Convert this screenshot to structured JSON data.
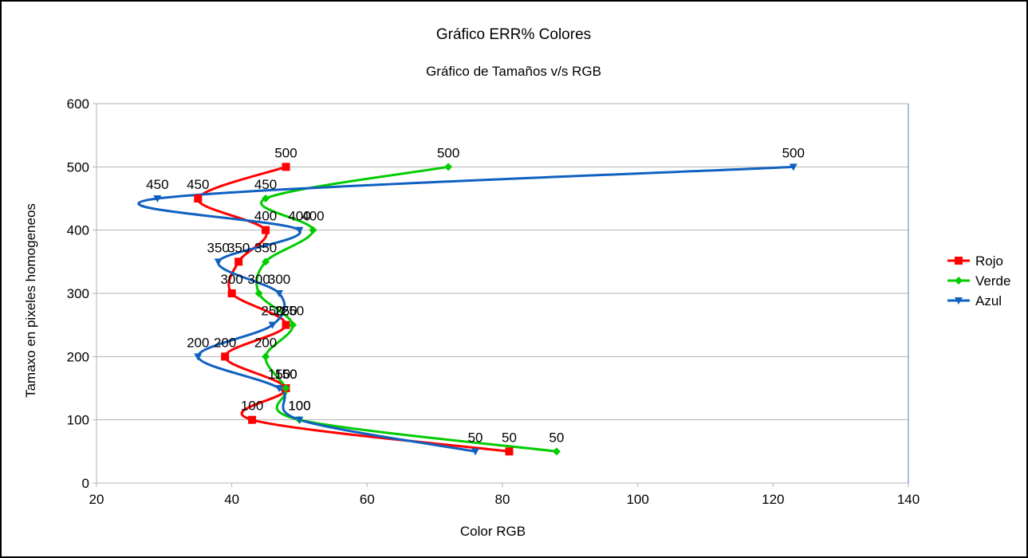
{
  "chart_data": {
    "type": "scatter",
    "title": "Gráfico ERR% Colores",
    "subtitle": "Gráfico de Tamaños v/s RGB",
    "xlabel": "Color RGB",
    "ylabel": "Tamaxo en pixeles homogeneos",
    "xlim": [
      20,
      140
    ],
    "ylim": [
      0,
      600
    ],
    "xticks": [
      20,
      40,
      60,
      80,
      100,
      120,
      140
    ],
    "yticks": [
      0,
      100,
      200,
      300,
      400,
      500,
      600
    ],
    "grid": "horizontal",
    "smooth_lines": true,
    "legend_position": "right",
    "series": [
      {
        "name": "Rojo",
        "color": "#ff0000",
        "marker": "square",
        "points": [
          {
            "x": 48,
            "y": 500
          },
          {
            "x": 35,
            "y": 450
          },
          {
            "x": 45,
            "y": 400
          },
          {
            "x": 41,
            "y": 350
          },
          {
            "x": 40,
            "y": 300
          },
          {
            "x": 48,
            "y": 250
          },
          {
            "x": 39,
            "y": 200
          },
          {
            "x": 48,
            "y": 150
          },
          {
            "x": 43,
            "y": 100
          },
          {
            "x": 81,
            "y": 50
          }
        ]
      },
      {
        "name": "Verde",
        "color": "#00cc00",
        "marker": "diamond",
        "points": [
          {
            "x": 72,
            "y": 500
          },
          {
            "x": 45,
            "y": 450
          },
          {
            "x": 52,
            "y": 400
          },
          {
            "x": 45,
            "y": 350
          },
          {
            "x": 44,
            "y": 300
          },
          {
            "x": 49,
            "y": 250
          },
          {
            "x": 45,
            "y": 200
          },
          {
            "x": 48,
            "y": 150
          },
          {
            "x": 50,
            "y": 100
          },
          {
            "x": 88,
            "y": 50
          }
        ]
      },
      {
        "name": "Azul",
        "color": "#1060c0",
        "marker": "triangle-down",
        "points": [
          {
            "x": 123,
            "y": 500
          },
          {
            "x": 29,
            "y": 450
          },
          {
            "x": 50,
            "y": 400
          },
          {
            "x": 38,
            "y": 350
          },
          {
            "x": 47,
            "y": 300
          },
          {
            "x": 46,
            "y": 250
          },
          {
            "x": 35,
            "y": 200
          },
          {
            "x": 47,
            "y": 150
          },
          {
            "x": 50,
            "y": 100
          },
          {
            "x": 76,
            "y": 50
          }
        ]
      }
    ]
  }
}
